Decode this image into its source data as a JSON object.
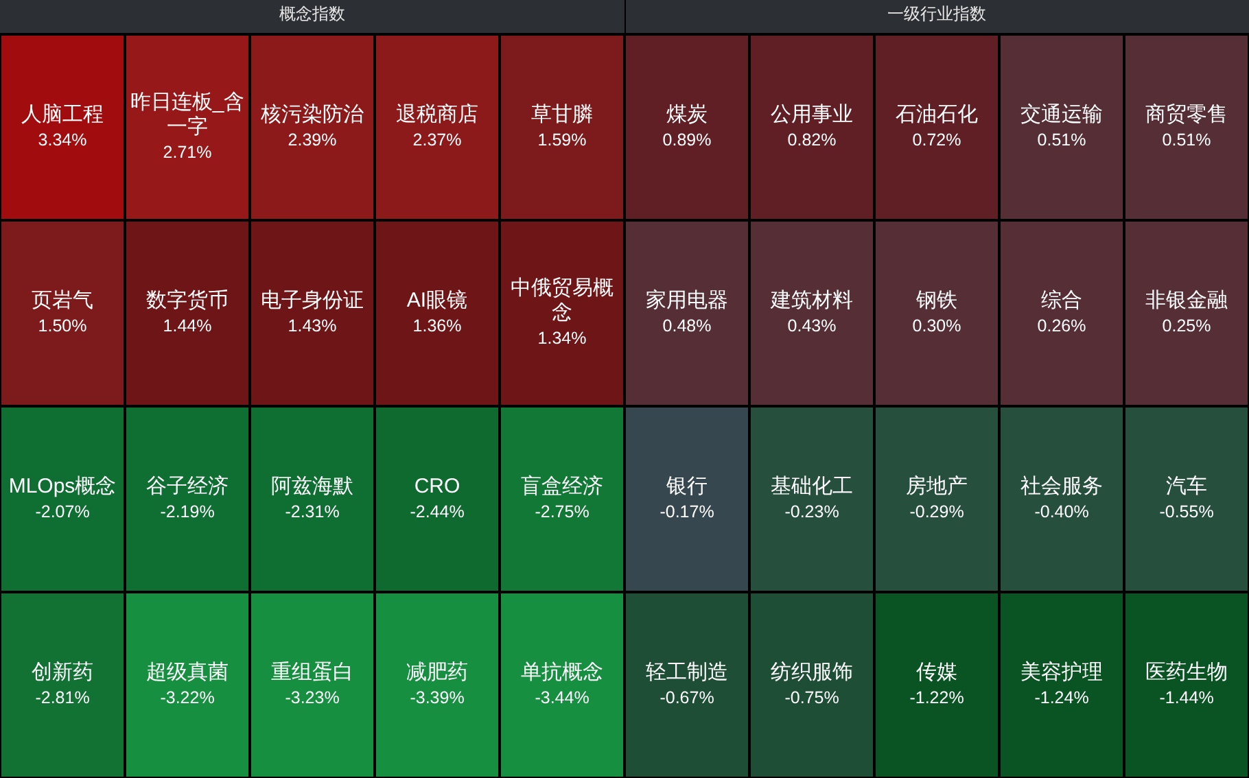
{
  "chart_data": [
    {
      "type": "other",
      "title": "概念指数",
      "categories": [
        "人脑工程",
        "昨日连板_含一字",
        "核污染防治",
        "退税商店",
        "草甘膦",
        "页岩气",
        "数字货币",
        "电子身份证",
        "AI眼镜",
        "中俄贸易概念",
        "MLOps概念",
        "谷子经济",
        "阿兹海默",
        "CRO",
        "盲盒经济",
        "创新药",
        "超级真菌",
        "重组蛋白",
        "减肥药",
        "单抗概念"
      ],
      "values": [
        3.34,
        2.71,
        2.39,
        2.37,
        1.59,
        1.5,
        1.44,
        1.43,
        1.36,
        1.34,
        -2.07,
        -2.19,
        -2.31,
        -2.44,
        -2.75,
        -2.81,
        -3.22,
        -3.23,
        -3.39,
        -3.44
      ],
      "value_labels": [
        "3.34%",
        "2.71%",
        "2.39%",
        "2.37%",
        "1.59%",
        "1.50%",
        "1.44%",
        "1.43%",
        "1.36%",
        "1.34%",
        "-2.07%",
        "-2.19%",
        "-2.31%",
        "-2.44%",
        "-2.75%",
        "-2.81%",
        "-3.22%",
        "-3.23%",
        "-3.39%",
        "-3.44%"
      ],
      "colors": [
        "#a10d0e",
        "#961819",
        "#8c1a1b",
        "#8c1a1b",
        "#7d1a1b",
        "#7d1a1b",
        "#6d1517",
        "#6d1517",
        "#6d1517",
        "#6d1517",
        "#0f6e32",
        "#0f6e32",
        "#0f6e32",
        "#0f6a30",
        "#127835",
        "#127234",
        "#168f40",
        "#168f40",
        "#168f40",
        "#168f40"
      ]
    },
    {
      "type": "other",
      "title": "一级行业指数",
      "categories": [
        "煤炭",
        "公用事业",
        "石油石化",
        "交通运输",
        "商贸零售",
        "家用电器",
        "建筑材料",
        "钢铁",
        "综合",
        "非银金融",
        "银行",
        "基础化工",
        "房地产",
        "社会服务",
        "汽车",
        "轻工制造",
        "纺织服饰",
        "传媒",
        "美容护理",
        "医药生物"
      ],
      "values": [
        0.89,
        0.82,
        0.72,
        0.51,
        0.51,
        0.48,
        0.43,
        0.3,
        0.26,
        0.25,
        -0.17,
        -0.23,
        -0.29,
        -0.4,
        -0.55,
        -0.67,
        -0.75,
        -1.22,
        -1.24,
        -1.44
      ],
      "value_labels": [
        "0.89%",
        "0.82%",
        "0.72%",
        "0.51%",
        "0.51%",
        "0.48%",
        "0.43%",
        "0.30%",
        "0.26%",
        "0.25%",
        "-0.17%",
        "-0.23%",
        "-0.29%",
        "-0.40%",
        "-0.55%",
        "-0.67%",
        "-0.75%",
        "-1.22%",
        "-1.24%",
        "-1.44%"
      ],
      "colors": [
        "#5f1f24",
        "#5f1f24",
        "#5f1f24",
        "#552e36",
        "#552e36",
        "#552e36",
        "#552e36",
        "#552e36",
        "#552e36",
        "#552e36",
        "#37474f",
        "#264f3d",
        "#264f3d",
        "#264f3d",
        "#264f3d",
        "#1e4f36",
        "#1e4f36",
        "#0a5424",
        "#0a5424",
        "#0a5424"
      ]
    }
  ]
}
